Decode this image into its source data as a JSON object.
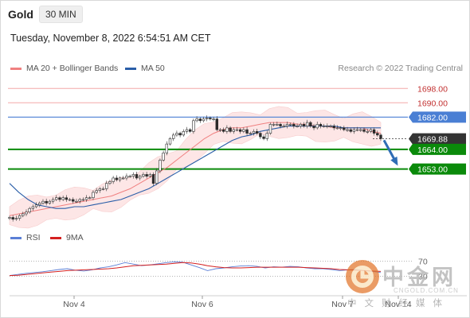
{
  "header": {
    "symbol": "Gold",
    "timeframe": "30 MIN"
  },
  "date_line": "Tuesday, November 8, 2022 6:54:51 AM CET",
  "legend": {
    "ma_bb": "MA 20 + Bollinger Bands",
    "ma50": "MA 50"
  },
  "credit": "Research © 2022 Trading Central",
  "rsi_legend": {
    "rsi": "RSI",
    "ma": "9MA"
  },
  "colors": {
    "ma20": "#f08080",
    "ma50": "#2a5ea8",
    "band_fill": "#fde6e6",
    "resistance": "#f4a8a8",
    "pivot": "#4a7fd4",
    "support": "#0a8a0a",
    "current": "#333333",
    "arrow": "#2f6db5",
    "rsi": "#5b7fd6",
    "rsi_ma": "#d42020"
  },
  "watermark": {
    "brand": "中金网",
    "site": "CNGOLD.COM.CN",
    "tagline": "中文财经媒体"
  },
  "chart_data": {
    "type": "candlestick",
    "x_ticks": [
      "Nov 4",
      "Nov 6",
      "Nov 7",
      "Nov 14"
    ],
    "ylim": [
      1624,
      1703
    ],
    "levels": [
      {
        "name": "resistance",
        "value": 1698.0,
        "label": "1698.00"
      },
      {
        "name": "resistance",
        "value": 1690.0,
        "label": "1690.00"
      },
      {
        "name": "pivot",
        "value": 1682.0,
        "label": "1682.00"
      },
      {
        "name": "current",
        "value": 1669.88,
        "label": "1669.88"
      },
      {
        "name": "support",
        "value": 1664.0,
        "label": "1664.00"
      },
      {
        "name": "support",
        "value": 1653.0,
        "label": "1653.00"
      }
    ],
    "close": [
      1626,
      1625,
      1625.5,
      1627,
      1628,
      1629,
      1631,
      1632,
      1633,
      1634,
      1635,
      1634,
      1635,
      1636,
      1637,
      1636,
      1637,
      1636,
      1636,
      1635,
      1635,
      1636,
      1636,
      1637,
      1637,
      1640,
      1641,
      1642,
      1642,
      1645,
      1646,
      1648,
      1647,
      1648,
      1648,
      1649,
      1649,
      1650,
      1648,
      1649,
      1650,
      1649,
      1650,
      1645,
      1652,
      1658,
      1662,
      1667,
      1670,
      1672,
      1673,
      1672,
      1674,
      1675,
      1674,
      1680,
      1681,
      1680,
      1681,
      1681.5,
      1681,
      1681,
      1675,
      1675,
      1674,
      1676,
      1674,
      1675,
      1675,
      1674,
      1675,
      1673,
      1673,
      1674,
      1673,
      1671,
      1670,
      1673,
      1678,
      1678,
      1678,
      1677,
      1677,
      1678,
      1678,
      1677,
      1677,
      1678,
      1677,
      1679,
      1677,
      1676,
      1678,
      1677,
      1677,
      1677,
      1677,
      1676,
      1676,
      1676,
      1675,
      1675,
      1674,
      1675,
      1675,
      1675,
      1674,
      1674,
      1675,
      1673,
      1672,
      1670
    ],
    "ma20_values": [
      1627,
      1628,
      1629,
      1630,
      1631,
      1632,
      1633,
      1634,
      1635,
      1636,
      1637,
      1638,
      1640,
      1642,
      1645,
      1648,
      1651,
      1654,
      1658,
      1662,
      1666,
      1670,
      1673,
      1675,
      1676,
      1676,
      1677,
      1678,
      1679,
      1679,
      1679,
      1678,
      1678,
      1677,
      1677,
      1676,
      1676,
      1676,
      1676,
      1674,
      1673
    ],
    "ma50_values": [
      1645,
      1640,
      1636,
      1633,
      1632,
      1631,
      1631,
      1632,
      1632,
      1633,
      1634,
      1635,
      1636,
      1638,
      1640,
      1642,
      1645,
      1648,
      1651,
      1654,
      1657,
      1660,
      1663,
      1666,
      1669,
      1671,
      1672,
      1674,
      1675,
      1676,
      1677,
      1677,
      1677,
      1677,
      1677,
      1677,
      1676,
      1676,
      1676,
      1676,
      1676
    ],
    "rsi": {
      "levels": [
        70,
        30
      ],
      "level_labels": [
        "70",
        "30"
      ],
      "rsi_values": [
        32,
        35,
        38,
        40,
        42,
        45,
        48,
        50,
        46,
        44,
        47,
        52,
        55,
        60,
        66,
        62,
        58,
        60,
        63,
        66,
        68,
        67,
        60,
        53,
        45,
        50,
        52,
        55,
        57,
        58,
        56,
        52,
        55,
        54,
        56,
        55,
        52,
        50,
        50,
        48,
        45,
        47,
        48,
        45,
        43,
        40
      ],
      "ma_values": [
        32,
        33,
        35,
        37,
        39,
        41,
        43,
        45,
        46,
        47,
        48,
        49,
        50,
        52,
        55,
        58,
        59,
        60,
        61,
        62,
        64,
        66,
        65,
        62,
        58,
        55,
        53,
        52,
        52,
        53,
        54,
        54,
        54,
        54,
        54,
        54,
        53,
        52,
        51,
        50,
        48,
        47,
        46,
        45,
        44,
        43
      ]
    }
  }
}
